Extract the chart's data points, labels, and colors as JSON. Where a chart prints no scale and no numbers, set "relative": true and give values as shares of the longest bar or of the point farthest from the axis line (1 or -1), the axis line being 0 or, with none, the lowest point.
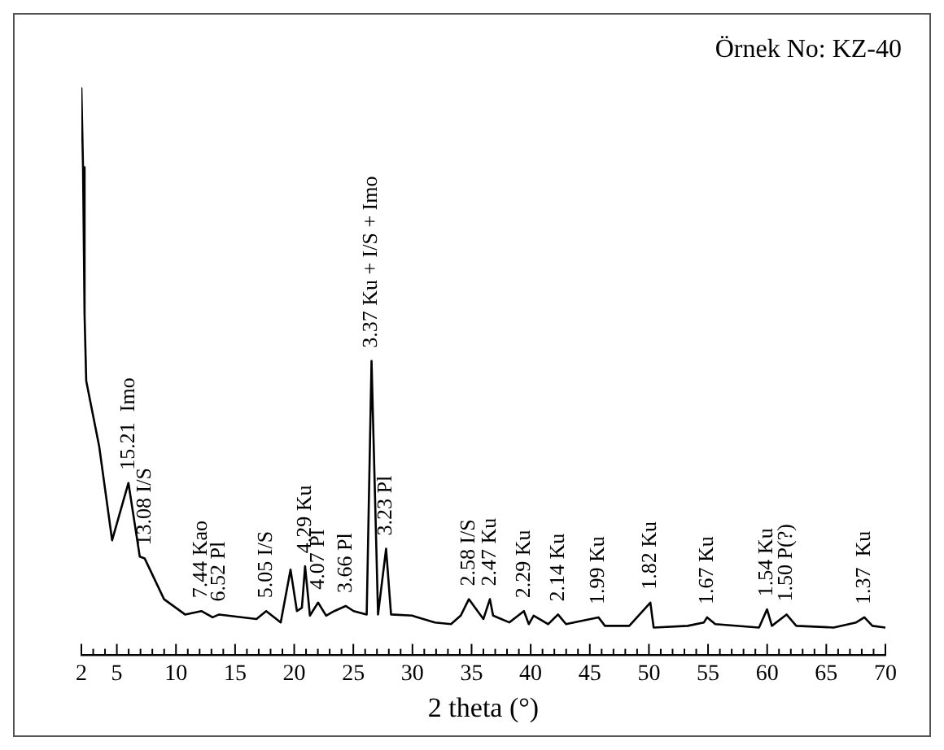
{
  "chart_data": {
    "type": "line",
    "relative": true,
    "xlabel": "2 theta (°)",
    "xlim": [
      2,
      70
    ],
    "xticks": [
      2,
      {
        "value": 3,
        "label": null
      },
      {
        "value": 4,
        "label": null
      },
      5,
      {
        "value": 6,
        "label": null
      },
      {
        "value": 7,
        "label": null
      },
      {
        "value": 8,
        "label": null
      },
      {
        "value": 9,
        "label": null
      },
      10,
      {
        "value": 11,
        "label": null
      },
      {
        "value": 12,
        "label": null
      },
      {
        "value": 13,
        "label": null
      },
      {
        "value": 14,
        "label": null
      },
      15,
      {
        "value": 16,
        "label": null
      },
      {
        "value": 17,
        "label": null
      },
      {
        "value": 18,
        "label": null
      },
      {
        "value": 19,
        "label": null
      },
      20,
      {
        "value": 21,
        "label": null
      },
      {
        "value": 22,
        "label": null
      },
      {
        "value": 23,
        "label": null
      },
      {
        "value": 24,
        "label": null
      },
      25,
      {
        "value": 26,
        "label": null
      },
      {
        "value": 27,
        "label": null
      },
      {
        "value": 28,
        "label": null
      },
      {
        "value": 29,
        "label": null
      },
      30,
      {
        "value": 31,
        "label": null
      },
      {
        "value": 32,
        "label": null
      },
      {
        "value": 33,
        "label": null
      },
      {
        "value": 34,
        "label": null
      },
      35,
      {
        "value": 36,
        "label": null
      },
      {
        "value": 37,
        "label": null
      },
      {
        "value": 38,
        "label": null
      },
      {
        "value": 39,
        "label": null
      },
      40,
      {
        "value": 41,
        "label": null
      },
      {
        "value": 42,
        "label": null
      },
      {
        "value": 43,
        "label": null
      },
      {
        "value": 44,
        "label": null
      },
      45,
      {
        "value": 46,
        "label": null
      },
      {
        "value": 47,
        "label": null
      },
      {
        "value": 48,
        "label": null
      },
      {
        "value": 49,
        "label": null
      },
      50,
      {
        "value": 51,
        "label": null
      },
      {
        "value": 52,
        "label": null
      },
      {
        "value": 53,
        "label": null
      },
      {
        "value": 54,
        "label": null
      },
      55,
      {
        "value": 56,
        "label": null
      },
      {
        "value": 57,
        "label": null
      },
      {
        "value": 58,
        "label": null
      },
      {
        "value": 59,
        "label": null
      },
      60,
      {
        "value": 61,
        "label": null
      },
      {
        "value": 62,
        "label": null
      },
      {
        "value": 63,
        "label": null
      },
      {
        "value": 64,
        "label": null
      },
      65,
      {
        "value": 66,
        "label": null
      },
      {
        "value": 67,
        "label": null
      },
      {
        "value": 68,
        "label": null
      },
      {
        "value": 69,
        "label": null
      },
      70
    ],
    "tick_labels": "x",
    "marker": "none",
    "line_style": "solid",
    "series": [
      {
        "color": "#000000",
        "x": [
          2.0,
          2.14,
          2.27,
          2.41,
          3.51,
          4.6,
          5.98,
          6.94,
          7.35,
          8.99,
          10.77,
          12.15,
          13.1,
          13.65,
          16.81,
          17.63,
          18.86,
          19.69,
          20.23,
          20.65,
          20.92,
          21.33,
          22.02,
          22.7,
          23.39,
          24.35,
          25.03,
          26.13,
          26.54,
          27.09,
          27.77,
          28.19,
          29.97,
          31.89,
          33.26,
          34.08,
          34.77,
          36.0,
          36.55,
          36.82,
          38.19,
          39.43,
          39.84,
          40.25,
          41.48,
          42.31,
          42.99,
          45.73,
          46.28,
          48.34,
          50.12,
          50.4,
          53.28,
          54.65,
          54.92,
          55.61,
          59.31,
          59.99,
          60.4,
          61.64,
          62.46,
          65.61,
          67.53,
          68.22,
          68.9,
          70.0
        ],
        "values": [
          1.0,
          0.861,
          0.6,
          0.484,
          0.368,
          0.203,
          0.304,
          0.174,
          0.171,
          0.099,
          0.072,
          0.078,
          0.067,
          0.072,
          0.064,
          0.078,
          0.058,
          0.151,
          0.078,
          0.084,
          0.157,
          0.07,
          0.093,
          0.07,
          0.078,
          0.087,
          0.078,
          0.072,
          0.519,
          0.072,
          0.188,
          0.072,
          0.07,
          0.058,
          0.055,
          0.07,
          0.099,
          0.064,
          0.099,
          0.07,
          0.058,
          0.078,
          0.055,
          0.07,
          0.055,
          0.072,
          0.055,
          0.067,
          0.052,
          0.052,
          0.093,
          0.049,
          0.052,
          0.058,
          0.067,
          0.055,
          0.049,
          0.081,
          0.052,
          0.072,
          0.052,
          0.049,
          0.058,
          0.067,
          0.052,
          0.049
        ]
      }
    ],
    "annotations": [
      "Örnek No: KZ-40",
      {
        "text": "15.21  Imo",
        "x": 5.98,
        "y": 0.304
      },
      {
        "text": "13.08 I/S",
        "x": 7.35,
        "y": 0.171
      },
      {
        "text": "7.44 Kao",
        "x": 12.15,
        "y": 0.078
      },
      {
        "text": "6.52 Pl",
        "x": 13.65,
        "y": 0.072
      },
      {
        "text": "5.05 I/S",
        "x": 17.63,
        "y": 0.078
      },
      {
        "text": "4.29 Ku",
        "x": 20.92,
        "y": 0.157
      },
      {
        "text": "4.07 Pl",
        "x": 22.02,
        "y": 0.093
      },
      {
        "text": "3.66 Pl",
        "x": 24.35,
        "y": 0.087
      },
      {
        "text": "3.37 Ku + I/S + Imo",
        "x": 26.54,
        "y": 0.519
      },
      {
        "text": "3.23 Pl",
        "x": 27.77,
        "y": 0.188
      },
      {
        "text": "2.58 I/S",
        "x": 34.77,
        "y": 0.099
      },
      {
        "text": "2.47 Ku",
        "x": 36.55,
        "y": 0.099
      },
      {
        "text": "2.29 Ku",
        "x": 39.43,
        "y": 0.078
      },
      {
        "text": "2.14 Ku",
        "x": 42.31,
        "y": 0.072
      },
      {
        "text": "1.99 Ku",
        "x": 45.73,
        "y": 0.067
      },
      {
        "text": "1.82 Ku",
        "x": 50.12,
        "y": 0.093
      },
      {
        "text": "1.67 Ku",
        "x": 54.92,
        "y": 0.067
      },
      {
        "text": "1.54 Ku",
        "x": 59.99,
        "y": 0.081
      },
      {
        "text": "1.50 P(?)",
        "x": 61.64,
        "y": 0.072
      },
      {
        "text": "1.37  Ku",
        "x": 68.22,
        "y": 0.067
      }
    ]
  }
}
